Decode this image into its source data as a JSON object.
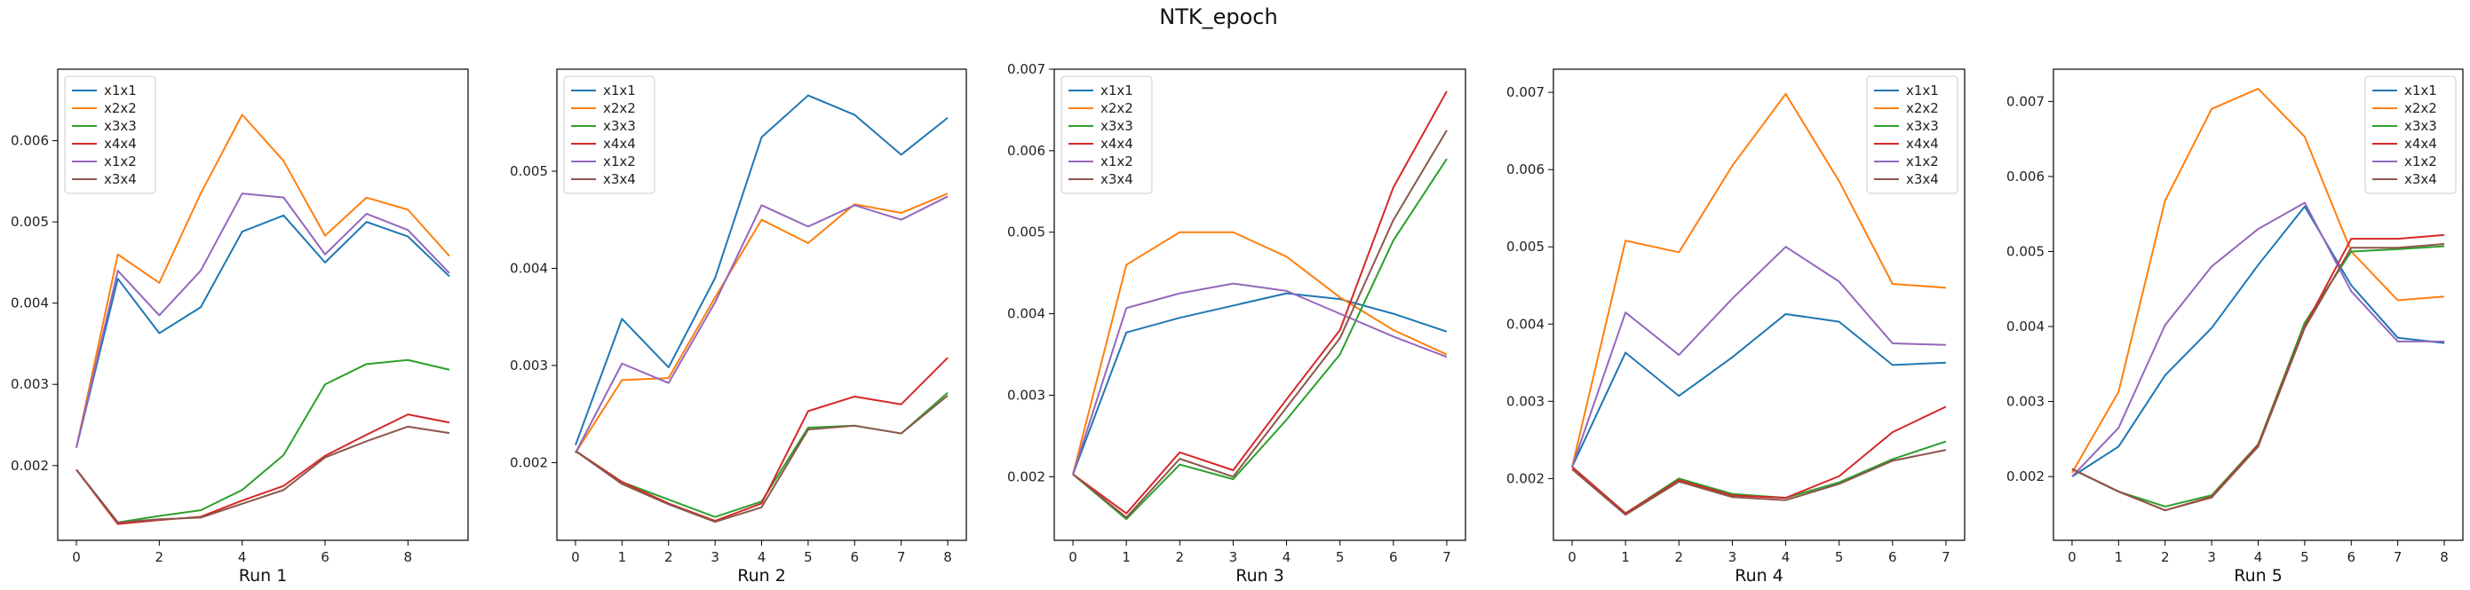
{
  "figure": {
    "title": "NTK_epoch"
  },
  "series_colors": {
    "x1x1": "#1f77b4",
    "x2x2": "#ff7f0e",
    "x3x3": "#2ca02c",
    "x4x4": "#d62728",
    "x1x2": "#9467bd",
    "x3x4": "#8c564b"
  },
  "chart_data": [
    {
      "type": "line",
      "xlabel": "Run 1",
      "x": [
        0,
        1,
        2,
        3,
        4,
        5,
        6,
        7,
        8,
        9
      ],
      "xticks": [
        0,
        2,
        4,
        6,
        8
      ],
      "ylim": [
        0.00108,
        0.00688
      ],
      "yticks": [
        0.002,
        0.003,
        0.004,
        0.005,
        0.006
      ],
      "ytick_labels": [
        "0.002",
        "0.003",
        "0.004",
        "0.005",
        "0.006"
      ],
      "legend": "upper-left",
      "series": [
        {
          "name": "x1x1",
          "values": [
            0.00222,
            0.0043,
            0.00363,
            0.00395,
            0.00488,
            0.00508,
            0.0045,
            0.005,
            0.00482,
            0.00433
          ]
        },
        {
          "name": "x2x2",
          "values": [
            0.00222,
            0.0046,
            0.00425,
            0.00535,
            0.00632,
            0.00575,
            0.00483,
            0.0053,
            0.00515,
            0.00458
          ]
        },
        {
          "name": "x3x3",
          "values": [
            0.00195,
            0.0013,
            0.00138,
            0.00145,
            0.0017,
            0.00213,
            0.003,
            0.00325,
            0.0033,
            0.00318
          ]
        },
        {
          "name": "x4x4",
          "values": [
            0.00195,
            0.00128,
            0.00133,
            0.00137,
            0.00157,
            0.00175,
            0.00212,
            0.00238,
            0.00263,
            0.00253
          ]
        },
        {
          "name": "x1x2",
          "values": [
            0.00222,
            0.0044,
            0.00385,
            0.0044,
            0.00535,
            0.0053,
            0.0046,
            0.0051,
            0.0049,
            0.00437
          ]
        },
        {
          "name": "x3x4",
          "values": [
            0.00195,
            0.0013,
            0.00134,
            0.00136,
            0.00153,
            0.0017,
            0.0021,
            0.0023,
            0.00248,
            0.0024
          ]
        }
      ]
    },
    {
      "type": "line",
      "xlabel": "Run 2",
      "x": [
        0,
        1,
        2,
        3,
        4,
        5,
        6,
        7,
        8
      ],
      "xticks": [
        0,
        1,
        2,
        3,
        4,
        5,
        6,
        7,
        8
      ],
      "ylim": [
        0.0012,
        0.00605
      ],
      "yticks": [
        0.002,
        0.003,
        0.004,
        0.005
      ],
      "ytick_labels": [
        "0.002",
        "0.003",
        "0.004",
        "0.005"
      ],
      "legend": "upper-left",
      "series": [
        {
          "name": "x1x1",
          "values": [
            0.00218,
            0.00348,
            0.00298,
            0.0039,
            0.00535,
            0.00578,
            0.00558,
            0.00517,
            0.00555
          ]
        },
        {
          "name": "x2x2",
          "values": [
            0.0021,
            0.00285,
            0.00287,
            0.0037,
            0.0045,
            0.00426,
            0.00466,
            0.00457,
            0.00477
          ]
        },
        {
          "name": "x3x3",
          "values": [
            0.00212,
            0.0018,
            0.00162,
            0.00144,
            0.0016,
            0.00236,
            0.00238,
            0.0023,
            0.00272
          ]
        },
        {
          "name": "x4x4",
          "values": [
            0.00212,
            0.0018,
            0.00158,
            0.0014,
            0.00158,
            0.00253,
            0.00268,
            0.0026,
            0.00308
          ]
        },
        {
          "name": "x1x2",
          "values": [
            0.0021,
            0.00302,
            0.00282,
            0.00365,
            0.00465,
            0.00443,
            0.00465,
            0.0045,
            0.00474
          ]
        },
        {
          "name": "x3x4",
          "values": [
            0.00212,
            0.00178,
            0.00157,
            0.00139,
            0.00154,
            0.00234,
            0.00238,
            0.0023,
            0.00269
          ]
        }
      ]
    },
    {
      "type": "line",
      "xlabel": "Run 3",
      "x": [
        0,
        1,
        2,
        3,
        4,
        5,
        6,
        7
      ],
      "xticks": [
        0,
        1,
        2,
        3,
        4,
        5,
        6,
        7
      ],
      "ylim": [
        0.00122,
        0.007
      ],
      "yticks": [
        0.002,
        0.003,
        0.004,
        0.005,
        0.006,
        0.007
      ],
      "ytick_labels": [
        "0.002",
        "0.003",
        "0.004",
        "0.005",
        "0.006",
        "0.007"
      ],
      "legend": "upper-left",
      "series": [
        {
          "name": "x1x1",
          "values": [
            0.00203,
            0.00377,
            0.00395,
            0.0041,
            0.00425,
            0.00418,
            0.004,
            0.00378
          ]
        },
        {
          "name": "x2x2",
          "values": [
            0.00203,
            0.0046,
            0.005,
            0.005,
            0.0047,
            0.0042,
            0.0038,
            0.0035
          ]
        },
        {
          "name": "x3x3",
          "values": [
            0.00203,
            0.00148,
            0.00215,
            0.00197,
            0.0027,
            0.0035,
            0.0049,
            0.0059
          ]
        },
        {
          "name": "x4x4",
          "values": [
            0.00203,
            0.00155,
            0.0023,
            0.00208,
            0.00295,
            0.0038,
            0.00555,
            0.00673
          ]
        },
        {
          "name": "x1x2",
          "values": [
            0.00203,
            0.00407,
            0.00425,
            0.00437,
            0.00428,
            0.004,
            0.00372,
            0.00347
          ]
        },
        {
          "name": "x3x4",
          "values": [
            0.00203,
            0.0015,
            0.00222,
            0.002,
            0.00285,
            0.0037,
            0.00515,
            0.00625
          ]
        }
      ]
    },
    {
      "type": "line",
      "xlabel": "Run 4",
      "x": [
        0,
        1,
        2,
        3,
        4,
        5,
        6,
        7
      ],
      "xticks": [
        0,
        1,
        2,
        3,
        4,
        5,
        6,
        7
      ],
      "ylim": [
        0.0012,
        0.0073
      ],
      "yticks": [
        0.002,
        0.003,
        0.004,
        0.005,
        0.006,
        0.007
      ],
      "ytick_labels": [
        "0.002",
        "0.003",
        "0.004",
        "0.005",
        "0.006",
        "0.007"
      ],
      "legend": "upper-right",
      "series": [
        {
          "name": "x1x1",
          "values": [
            0.00215,
            0.00363,
            0.00307,
            0.00357,
            0.00413,
            0.00403,
            0.00347,
            0.0035
          ]
        },
        {
          "name": "x2x2",
          "values": [
            0.00215,
            0.00508,
            0.00493,
            0.00605,
            0.00698,
            0.00585,
            0.00452,
            0.00447
          ]
        },
        {
          "name": "x3x3",
          "values": [
            0.00215,
            0.00155,
            0.002,
            0.0018,
            0.00175,
            0.00195,
            0.00225,
            0.00248
          ]
        },
        {
          "name": "x4x4",
          "values": [
            0.00215,
            0.00155,
            0.00198,
            0.00178,
            0.00175,
            0.00203,
            0.0026,
            0.00293
          ]
        },
        {
          "name": "x1x2",
          "values": [
            0.00215,
            0.00415,
            0.0036,
            0.00433,
            0.005,
            0.00455,
            0.00375,
            0.00373
          ]
        },
        {
          "name": "x3x4",
          "values": [
            0.00212,
            0.00153,
            0.00196,
            0.00176,
            0.00172,
            0.00193,
            0.00223,
            0.00237
          ]
        }
      ]
    },
    {
      "type": "line",
      "xlabel": "Run 5",
      "x": [
        0,
        1,
        2,
        3,
        4,
        5,
        6,
        7,
        8
      ],
      "xticks": [
        0,
        1,
        2,
        3,
        4,
        5,
        6,
        7,
        8
      ],
      "ylim": [
        0.00115,
        0.00743
      ],
      "yticks": [
        0.002,
        0.003,
        0.004,
        0.005,
        0.006,
        0.007
      ],
      "ytick_labels": [
        "0.002",
        "0.003",
        "0.004",
        "0.005",
        "0.006",
        "0.007"
      ],
      "legend": "upper-right",
      "series": [
        {
          "name": "x1x1",
          "values": [
            0.002,
            0.0024,
            0.00335,
            0.00398,
            0.00482,
            0.0056,
            0.00455,
            0.00385,
            0.00378
          ]
        },
        {
          "name": "x2x2",
          "values": [
            0.00205,
            0.00313,
            0.00568,
            0.0069,
            0.00717,
            0.00653,
            0.005,
            0.00435,
            0.0044
          ]
        },
        {
          "name": "x3x3",
          "values": [
            0.0021,
            0.0018,
            0.0016,
            0.00175,
            0.00243,
            0.00405,
            0.005,
            0.00503,
            0.00507
          ]
        },
        {
          "name": "x4x4",
          "values": [
            0.0021,
            0.0018,
            0.00155,
            0.00173,
            0.00242,
            0.004,
            0.00517,
            0.00517,
            0.00522
          ]
        },
        {
          "name": "x1x2",
          "values": [
            0.002,
            0.00265,
            0.00402,
            0.0048,
            0.0053,
            0.00565,
            0.00447,
            0.0038,
            0.0038
          ]
        },
        {
          "name": "x3x4",
          "values": [
            0.0021,
            0.0018,
            0.00155,
            0.00172,
            0.0024,
            0.00398,
            0.00505,
            0.00505,
            0.0051
          ]
        }
      ]
    }
  ]
}
